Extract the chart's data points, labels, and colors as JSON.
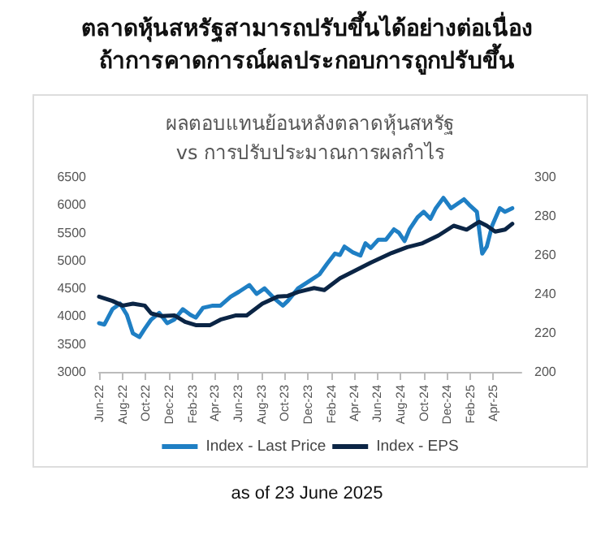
{
  "chart_data": {
    "type": "line",
    "title": "ตลาดหุ้นสหรัฐสามารถปรับขึ้นได้อย่างต่อเนื่อง\nถ้าการคาดการณ์ผลประกอบการถูกปรับขึ้น",
    "subtitle": "ผลตอบแทนย้อนหลังตลาดหุ้นสหรัฐ\nvs การปรับประมาณการผลกำไร",
    "annotations": [
      "as of 23 June 2025"
    ],
    "series": [
      {
        "name": "Index - Last Price",
        "color": "#1f7fc4",
        "x": [
          "2022-06-01",
          "2022-06-15",
          "2022-07-06",
          "2022-07-26",
          "2022-08-13",
          "2022-08-29",
          "2022-09-15",
          "2022-09-29",
          "2022-10-16",
          "2022-11-06",
          "2022-11-27",
          "2022-12-16",
          "2023-01-07",
          "2023-01-27",
          "2023-02-10",
          "2023-03-01",
          "2023-03-27",
          "2023-04-16",
          "2023-05-13",
          "2023-06-04",
          "2023-07-01",
          "2023-07-20",
          "2023-08-10",
          "2023-09-06",
          "2023-09-27",
          "2023-10-10",
          "2023-11-06",
          "2023-12-04",
          "2024-01-01",
          "2024-01-21",
          "2024-02-11",
          "2024-02-24",
          "2024-03-07",
          "2024-03-28",
          "2024-04-18",
          "2024-05-01",
          "2024-05-15",
          "2024-06-04",
          "2024-06-24",
          "2024-07-15",
          "2024-07-28",
          "2024-08-12",
          "2024-08-25",
          "2024-09-15",
          "2024-10-01",
          "2024-10-19",
          "2024-11-02",
          "2024-11-22",
          "2024-12-12",
          "2024-12-25",
          "2025-01-15",
          "2025-01-29",
          "2025-02-18",
          "2025-03-04",
          "2025-03-16",
          "2025-03-30",
          "2025-04-19",
          "2025-05-03",
          "2025-05-22"
        ],
        "values": [
          3875,
          3850,
          4125,
          4225,
          4025,
          3690,
          3625,
          3775,
          3940,
          4060,
          3875,
          3940,
          4125,
          4025,
          3975,
          4150,
          4190,
          4190,
          4350,
          4440,
          4560,
          4400,
          4500,
          4310,
          4190,
          4275,
          4500,
          4625,
          4750,
          4940,
          5125,
          5100,
          5250,
          5150,
          5090,
          5310,
          5225,
          5375,
          5375,
          5560,
          5500,
          5350,
          5560,
          5775,
          5875,
          5750,
          5940,
          6125,
          5940,
          6000,
          6100,
          6000,
          5875,
          5125,
          5250,
          5625,
          5940,
          5875,
          5940
        ]
      },
      {
        "name": "Index - EPS",
        "color": "#0b2545",
        "axis": "y2",
        "x": [
          "2022-06-01",
          "2022-07-06",
          "2022-08-02",
          "2022-08-29",
          "2022-09-29",
          "2022-10-16",
          "2022-11-13",
          "2022-12-16",
          "2023-01-13",
          "2023-02-10",
          "2023-03-20",
          "2023-04-16",
          "2023-05-27",
          "2023-06-24",
          "2023-08-04",
          "2023-09-13",
          "2023-10-10",
          "2023-11-06",
          "2023-12-18",
          "2024-01-14",
          "2024-02-24",
          "2024-04-04",
          "2024-05-15",
          "2024-07-09",
          "2024-08-19",
          "2024-09-28",
          "2024-11-09",
          "2024-12-19",
          "2025-01-22",
          "2025-02-24",
          "2025-03-16",
          "2025-04-07",
          "2025-05-03",
          "2025-05-22"
        ],
        "values": [
          238.6,
          236.4,
          234,
          235,
          234,
          230,
          228.6,
          229,
          225.7,
          224,
          224,
          226.8,
          229,
          229,
          235,
          238.6,
          239,
          241,
          243,
          242,
          248,
          252,
          256,
          261,
          264,
          266,
          270,
          275,
          273,
          277,
          275,
          272,
          273,
          276
        ]
      }
    ],
    "xlim": [
      "2022-06-01",
      "2025-06-15"
    ],
    "xticks": [
      {
        "value": "2022-06-01",
        "label": "Jun-22"
      },
      {
        "value": "2022-08-01",
        "label": "Aug-22"
      },
      {
        "value": "2022-10-01",
        "label": "Oct-22"
      },
      {
        "value": "2022-12-01",
        "label": "Dec-22"
      },
      {
        "value": "2023-02-01",
        "label": "Feb-23"
      },
      {
        "value": "2023-04-01",
        "label": "Apr-23"
      },
      {
        "value": "2023-06-01",
        "label": "Jun-23"
      },
      {
        "value": "2023-08-01",
        "label": "Aug-23"
      },
      {
        "value": "2023-10-01",
        "label": "Oct-23"
      },
      {
        "value": "2023-12-01",
        "label": "Dec-23"
      },
      {
        "value": "2024-02-01",
        "label": "Feb-24"
      },
      {
        "value": "2024-04-01",
        "label": "Apr-24"
      },
      {
        "value": "2024-06-01",
        "label": "Jun-24"
      },
      {
        "value": "2024-08-01",
        "label": "Aug-24"
      },
      {
        "value": "2024-10-01",
        "label": "Oct-24"
      },
      {
        "value": "2024-12-01",
        "label": "Dec-24"
      },
      {
        "value": "2025-02-01",
        "label": "Feb-25"
      },
      {
        "value": "2025-04-01",
        "label": "Apr-25"
      }
    ],
    "ylim": [
      3000,
      6500
    ],
    "yticks": [
      3000,
      3500,
      4000,
      4500,
      5000,
      5500,
      6000,
      6500
    ],
    "y2lim": [
      200,
      300
    ],
    "y2ticks": [
      200,
      220,
      240,
      260,
      280,
      300
    ],
    "grid": false,
    "legend": "bottom",
    "marker": "none",
    "line_style": "solid"
  }
}
